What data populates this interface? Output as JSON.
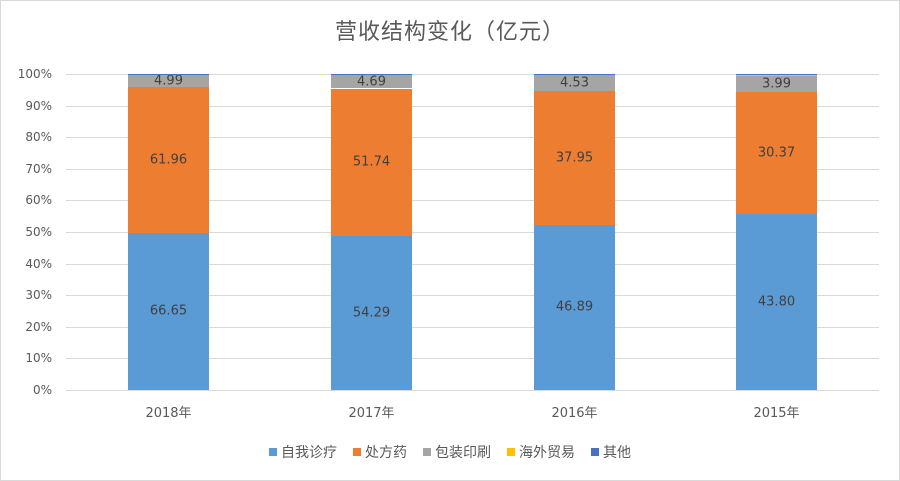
{
  "chart_data": {
    "type": "bar",
    "stacked": true,
    "normalized_percent": true,
    "title": "营收结构变化（亿元）",
    "xlabel": "",
    "ylabel": "",
    "ylim": [
      0,
      100
    ],
    "yticks": [
      "0%",
      "10%",
      "20%",
      "30%",
      "40%",
      "50%",
      "60%",
      "70%",
      "80%",
      "90%",
      "100%"
    ],
    "categories": [
      "2018年",
      "2017年",
      "2016年",
      "2015年"
    ],
    "series": [
      {
        "name": "自我诊疗",
        "color": "#5b9bd5",
        "values": [
          66.65,
          54.29,
          46.89,
          43.8
        ],
        "labels": [
          "66.65",
          "54.29",
          "46.89",
          "43.80"
        ]
      },
      {
        "name": "处方药",
        "color": "#ed7d31",
        "values": [
          61.96,
          51.74,
          37.95,
          30.37
        ],
        "labels": [
          "61.96",
          "51.74",
          "37.95",
          "30.37"
        ]
      },
      {
        "name": "包装印刷",
        "color": "#a5a5a5",
        "values": [
          4.99,
          4.69,
          4.53,
          3.99
        ],
        "labels": [
          "4.99",
          "4.69",
          "4.53",
          "3.99"
        ]
      },
      {
        "name": "海外贸易",
        "color": "#ffc000",
        "values": [
          0,
          0,
          0,
          0.25
        ],
        "labels": [
          "",
          "",
          "",
          ""
        ]
      },
      {
        "name": "其他",
        "color": "#4472c4",
        "values": [
          0.4,
          0.4,
          0.4,
          0.3
        ],
        "labels": [
          "",
          "",
          "",
          ""
        ]
      }
    ],
    "grid": true,
    "legend_position": "bottom"
  }
}
